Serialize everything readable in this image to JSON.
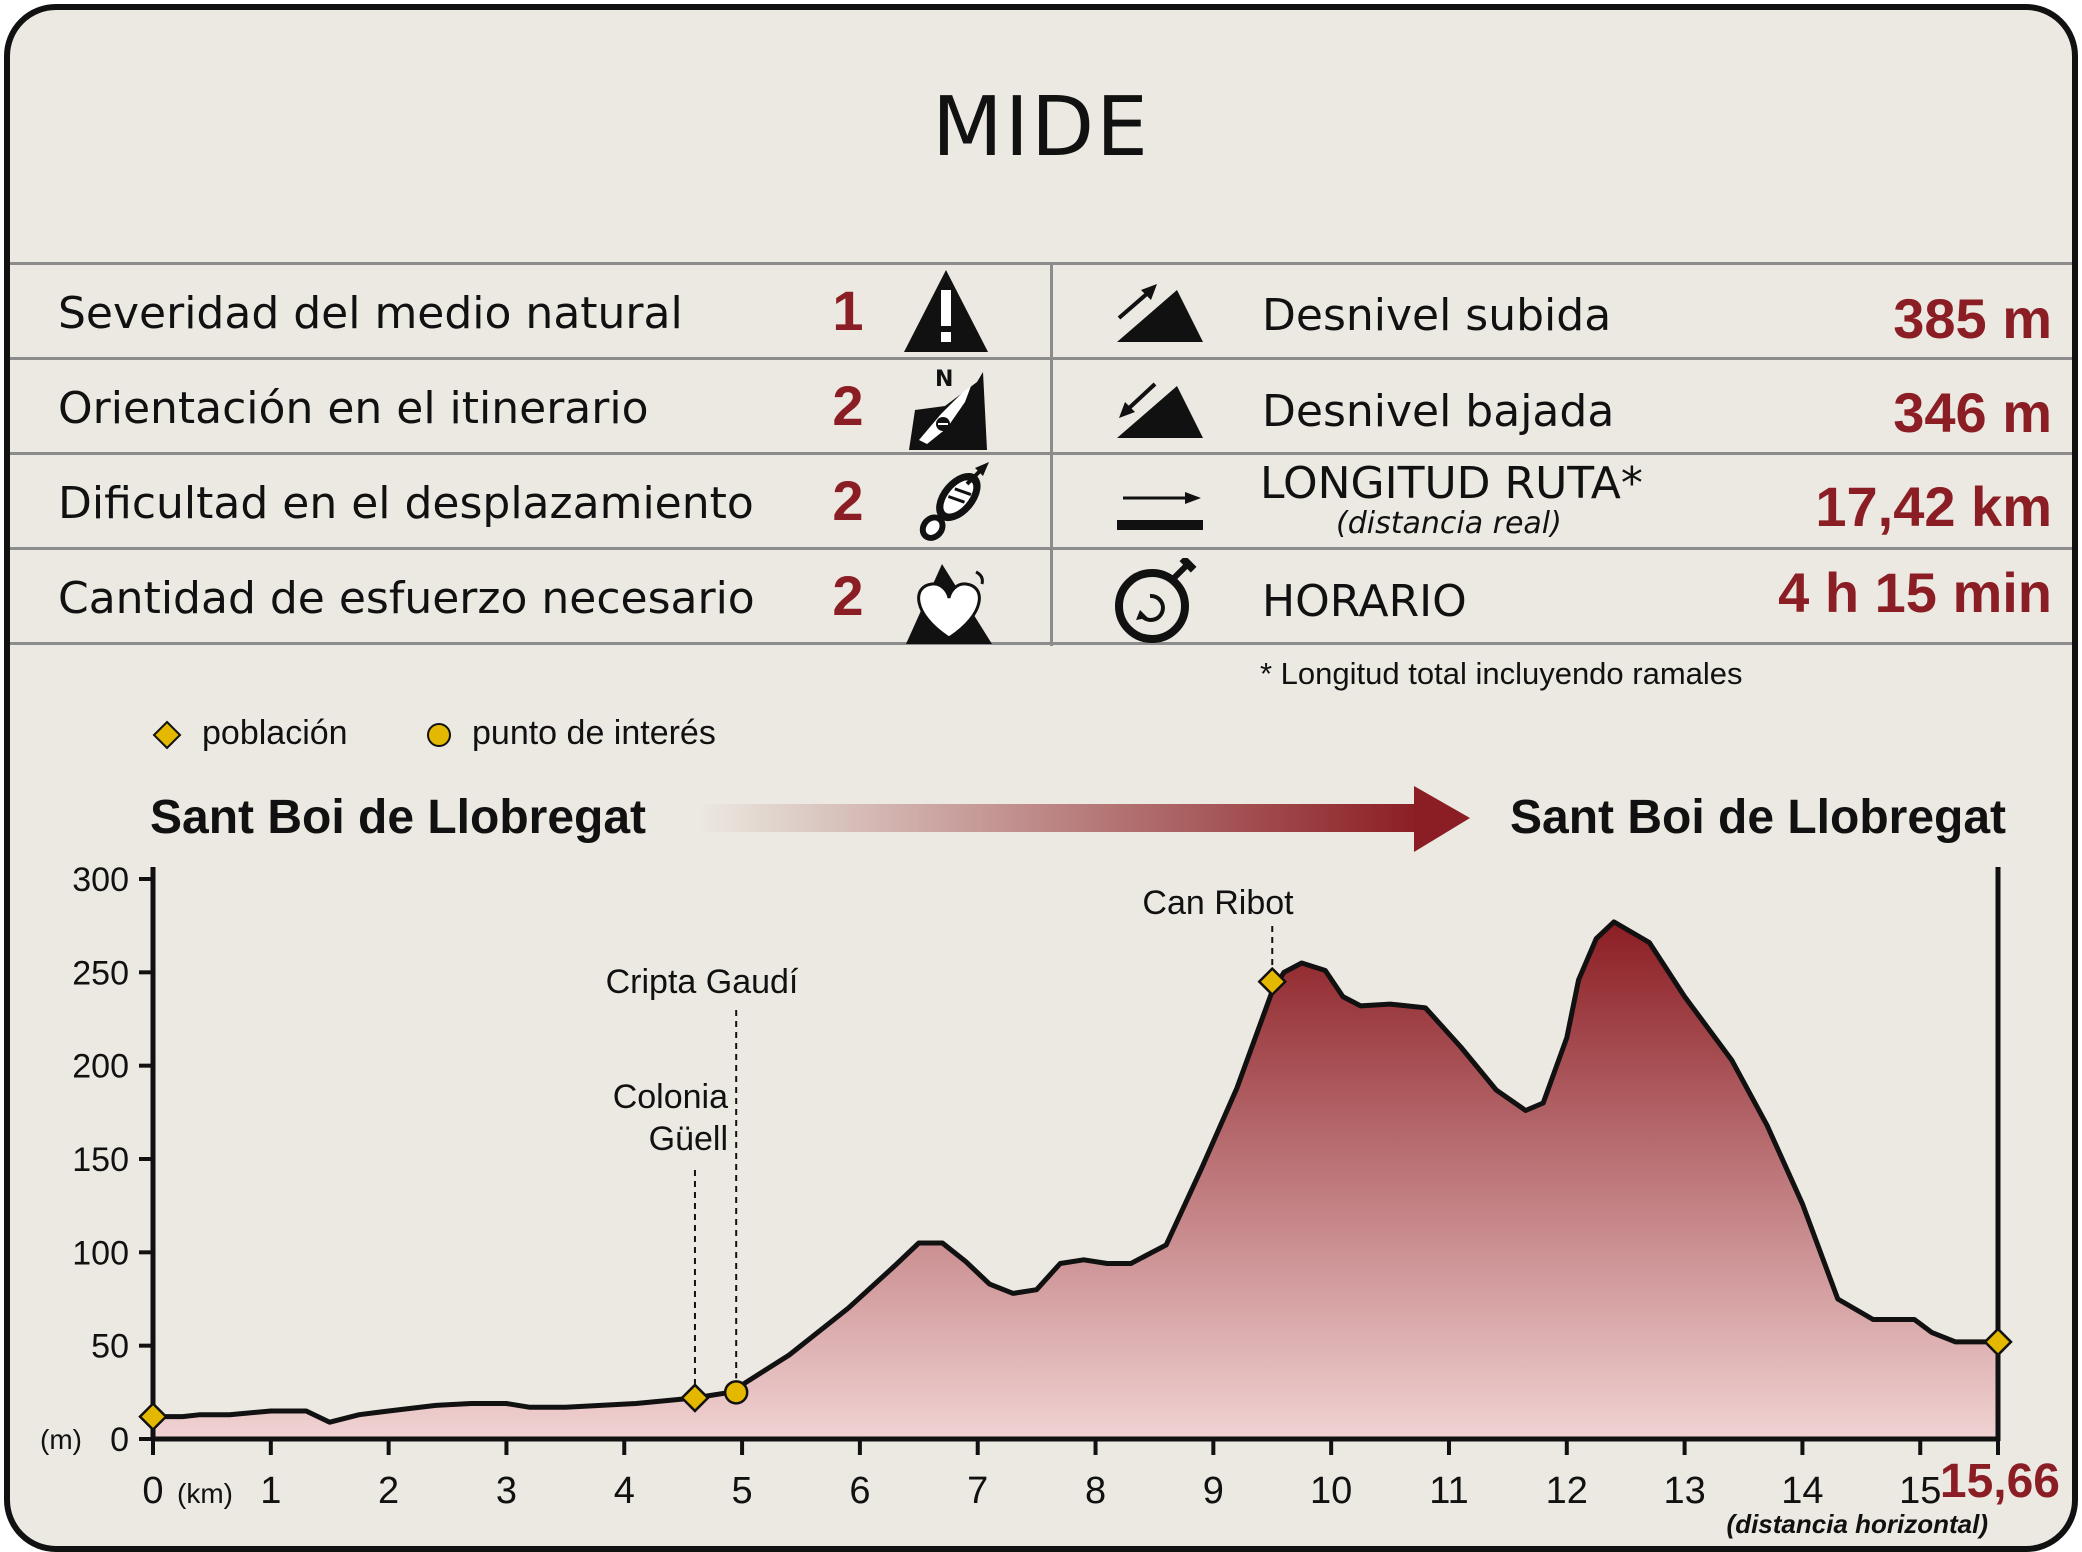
{
  "title": "MIDE",
  "mide_rows": [
    {
      "label": "Severidad del medio natural",
      "score": "1",
      "icon": "warning-mountain-icon"
    },
    {
      "label": "Orientación en el itinerario",
      "score": "2",
      "icon": "compass-map-icon"
    },
    {
      "label": "Dificultad en el desplazamiento",
      "score": "2",
      "icon": "boot-sole-icon"
    },
    {
      "label": "Cantidad de esfuerzo necesario",
      "score": "2",
      "icon": "heart-mountain-icon"
    }
  ],
  "stats": [
    {
      "label": "Desnivel subida",
      "value": "385 m",
      "icon": "ascent-slope-icon"
    },
    {
      "label": "Desnivel bajada",
      "value": "346 m",
      "icon": "descent-slope-icon"
    },
    {
      "label": "LONGITUD RUTA*",
      "sublabel": "(distancia real)",
      "value": "17,42 km",
      "icon": "length-arrow-icon"
    },
    {
      "label": "HORARIO",
      "value": "4 h 15 min",
      "icon": "stopwatch-icon"
    }
  ],
  "footnote": "* Longitud total incluyendo ramales",
  "legend": [
    {
      "label": "población",
      "marker": "diamond"
    },
    {
      "label": "punto de interés",
      "marker": "circle"
    }
  ],
  "start_town": "Sant Boi de Llobregat",
  "end_town": "Sant Boi de Llobregat",
  "colors": {
    "accent": "#8b1e24",
    "marker": "#e5b800",
    "background": "#ebe9e1"
  },
  "chart_data": {
    "type": "area",
    "ylabel": "(m)",
    "xlabel": "(km)",
    "ylim": [
      0,
      300
    ],
    "xlim": [
      0,
      15.66
    ],
    "yticks": [
      0,
      50,
      100,
      150,
      200,
      250,
      300
    ],
    "xticks": [
      0,
      1,
      2,
      3,
      4,
      5,
      6,
      7,
      8,
      9,
      10,
      11,
      12,
      13,
      14,
      15
    ],
    "end_distance_label": "15,66",
    "end_distance_note": "(distancia horizontal)",
    "x": [
      0,
      0.25,
      0.4,
      0.65,
      1.0,
      1.3,
      1.5,
      1.75,
      2.0,
      2.4,
      2.7,
      3.0,
      3.2,
      3.5,
      3.8,
      4.1,
      4.6,
      4.9,
      5.4,
      5.9,
      6.3,
      6.5,
      6.7,
      6.9,
      7.1,
      7.3,
      7.5,
      7.7,
      7.9,
      8.1,
      8.3,
      8.6,
      8.9,
      9.2,
      9.5,
      9.6,
      9.75,
      9.95,
      10.1,
      10.25,
      10.5,
      10.8,
      11.1,
      11.4,
      11.65,
      11.8,
      12.0,
      12.1,
      12.25,
      12.4,
      12.7,
      13.0,
      13.4,
      13.7,
      14.0,
      14.3,
      14.6,
      14.95,
      15.1,
      15.3,
      15.5,
      15.66
    ],
    "y": [
      12,
      12,
      13,
      13,
      15,
      15,
      9,
      13,
      15,
      18,
      19,
      19,
      17,
      17,
      18,
      19,
      22,
      25,
      45,
      70,
      93,
      105,
      105,
      95,
      83,
      78,
      80,
      94,
      96,
      94,
      94,
      104,
      145,
      188,
      240,
      250,
      255,
      251,
      237,
      232,
      233,
      231,
      210,
      187,
      176,
      180,
      215,
      246,
      268,
      277,
      266,
      237,
      203,
      168,
      126,
      75,
      64,
      64,
      57,
      52,
      52,
      52
    ],
    "points": [
      {
        "x": 0,
        "y": 12,
        "type": "población",
        "label": ""
      },
      {
        "x": 4.6,
        "y": 22,
        "type": "población",
        "label": "Colonia Güell"
      },
      {
        "x": 4.95,
        "y": 25,
        "type": "punto de interés",
        "label": "Cripta Gaudí"
      },
      {
        "x": 9.5,
        "y": 245,
        "type": "población",
        "label": "Can Ribot"
      },
      {
        "x": 15.66,
        "y": 52,
        "type": "población",
        "label": ""
      }
    ]
  }
}
